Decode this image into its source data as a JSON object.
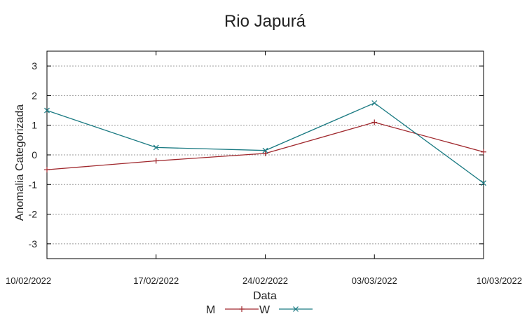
{
  "chart_data": {
    "type": "line",
    "title": "Rio Japurá",
    "xlabel": "Data",
    "ylabel": "Anomalia Categorizada",
    "categories": [
      "10/02/2022",
      "17/02/2022",
      "24/02/2022",
      "03/03/2022",
      "10/03/2022"
    ],
    "ylim": [
      -3.5,
      3.5
    ],
    "yticks": [
      "3",
      "2",
      "1",
      "0",
      "-1",
      "-2",
      "-3"
    ],
    "grid": true,
    "legend_position": "bottom-center",
    "series": [
      {
        "name": "M",
        "color": "#a0282d",
        "marker": "plus",
        "values": [
          -0.5,
          -0.2,
          0.05,
          1.1,
          0.1
        ]
      },
      {
        "name": "W",
        "color": "#1a7a82",
        "marker": "cross",
        "values": [
          1.5,
          0.25,
          0.15,
          1.75,
          -0.95
        ]
      }
    ]
  }
}
